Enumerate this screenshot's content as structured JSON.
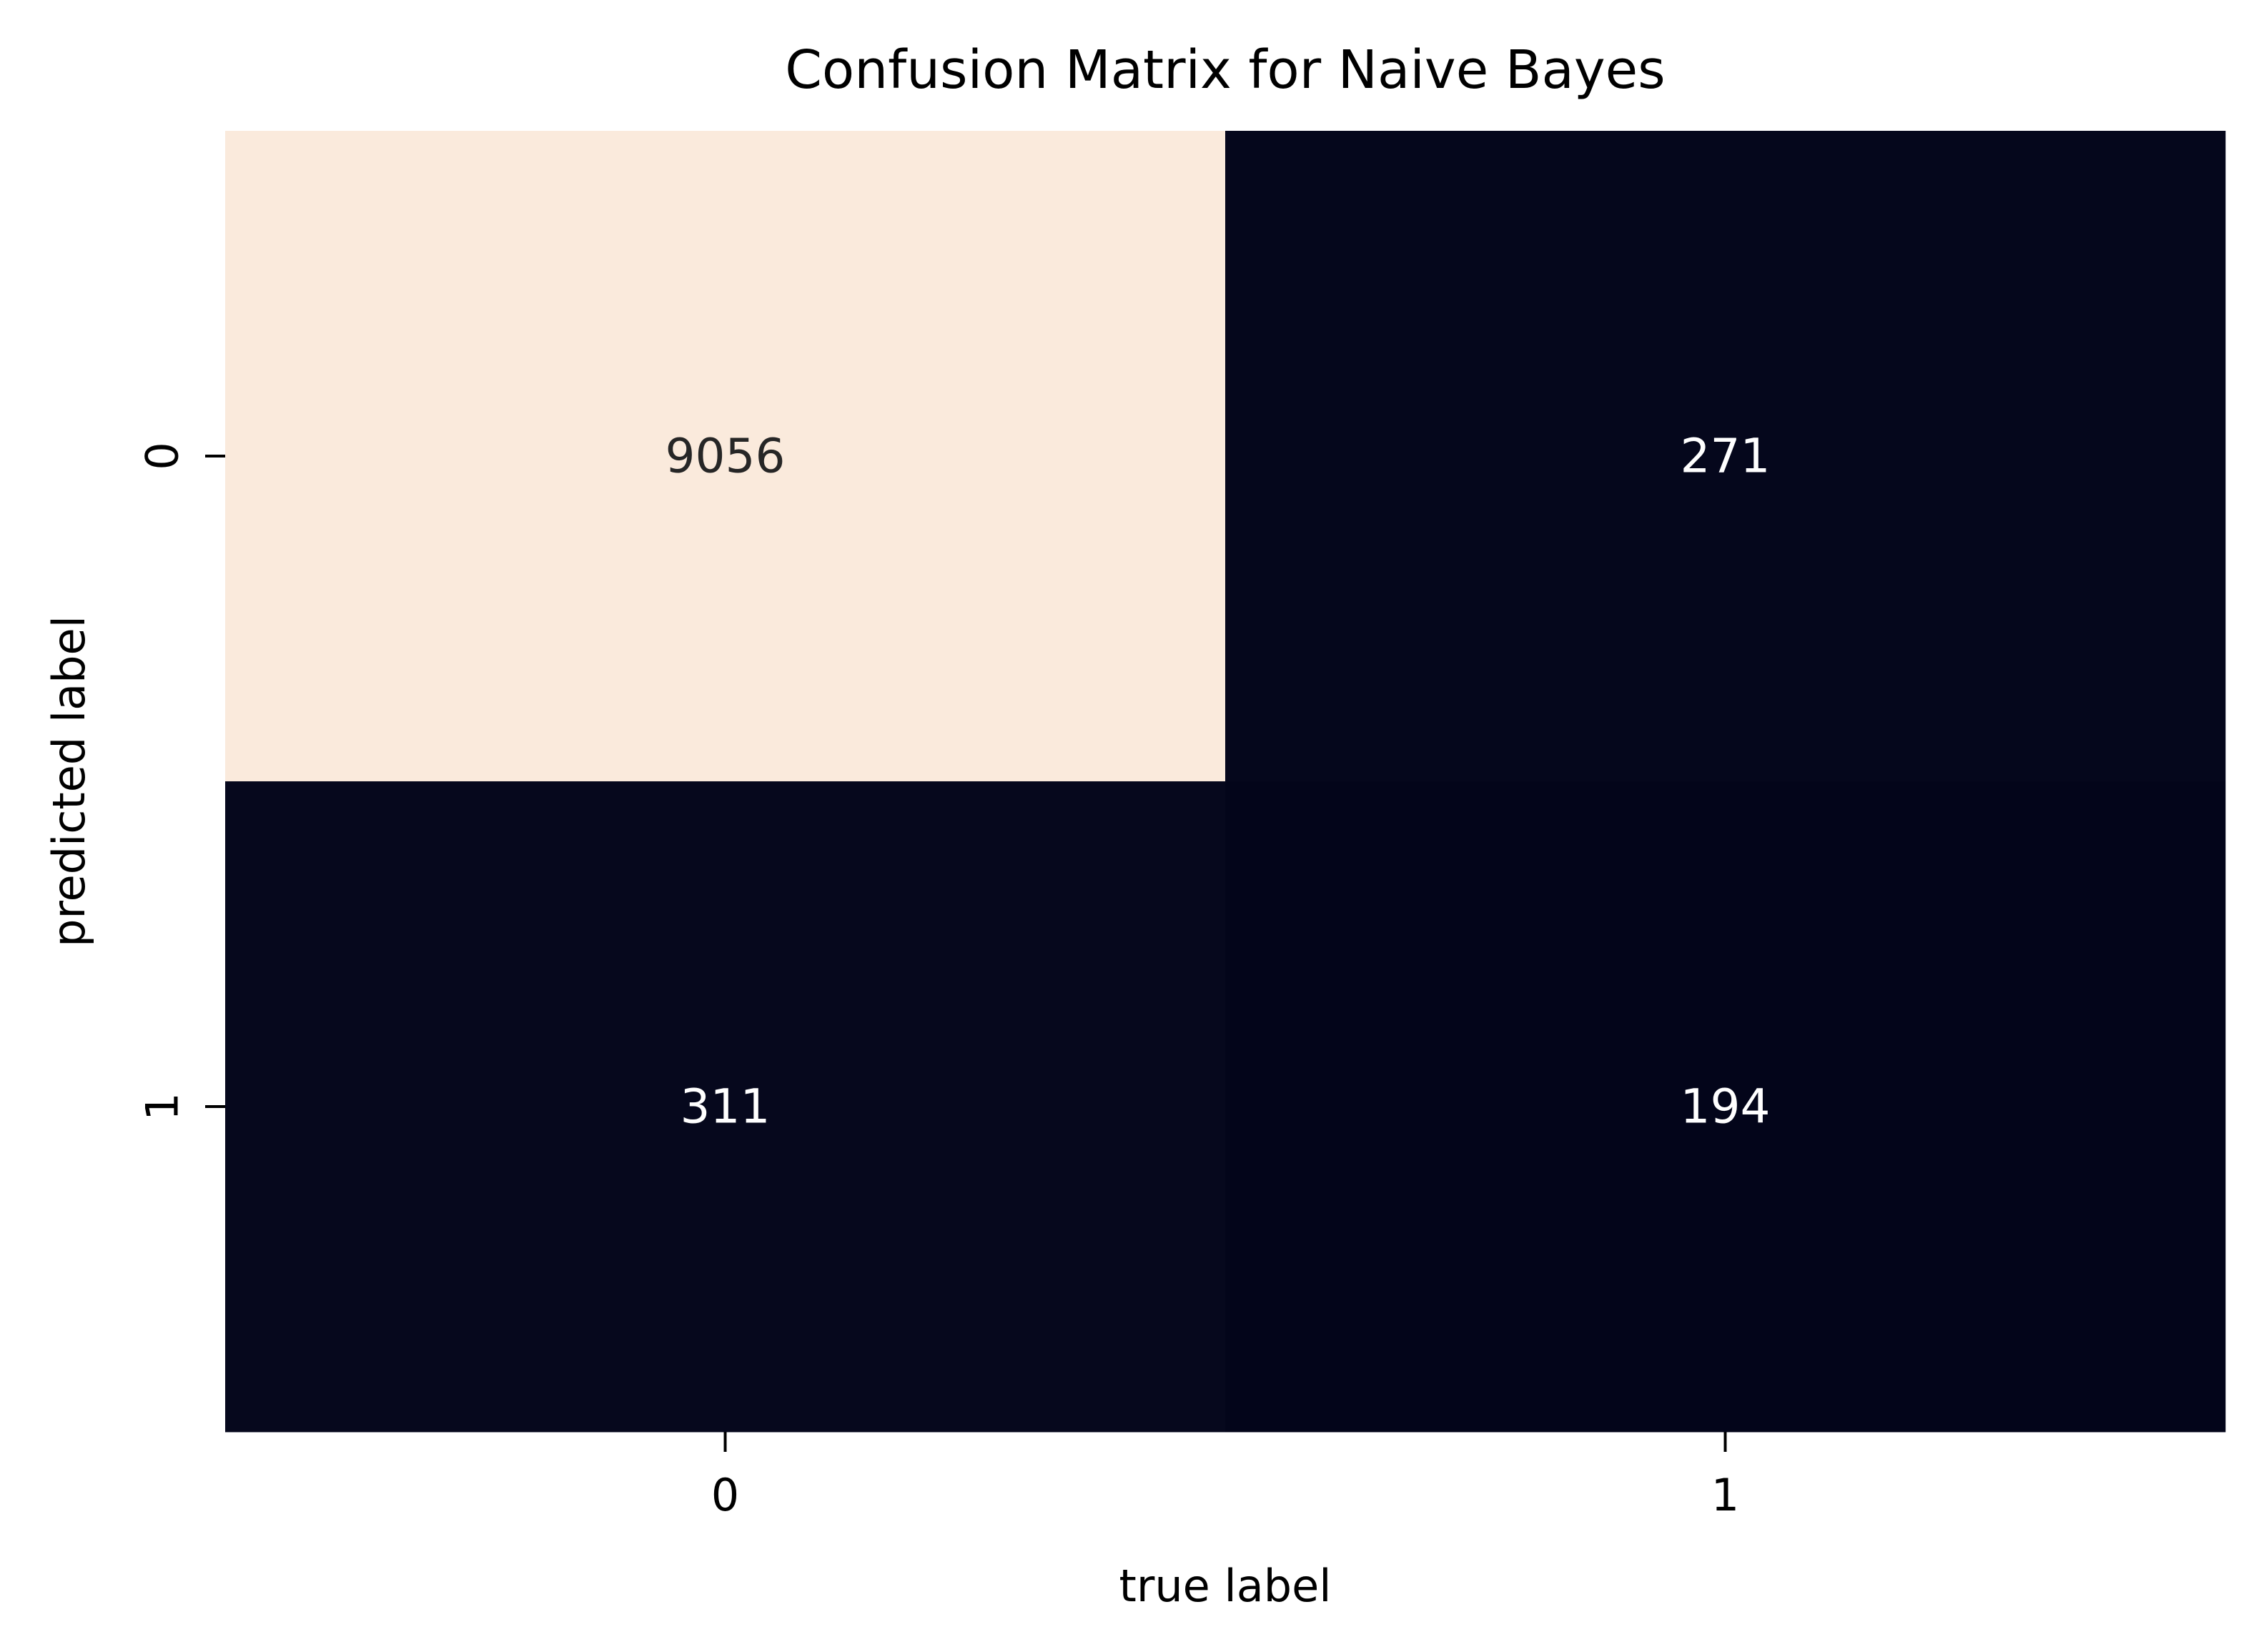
{
  "chart_data": {
    "type": "heatmap",
    "title": "Confusion Matrix for Naive Bayes",
    "xlabel": "true label",
    "ylabel": "predicted label",
    "x_categories": [
      "0",
      "1"
    ],
    "y_categories": [
      "0",
      "1"
    ],
    "values": [
      [
        9056,
        271
      ],
      [
        311,
        194
      ]
    ],
    "colorbar": false,
    "colors": {
      "high": "#faeadc",
      "low": "#03051a",
      "text_on_light": "#262626",
      "text_on_dark": "#ffffff"
    }
  }
}
